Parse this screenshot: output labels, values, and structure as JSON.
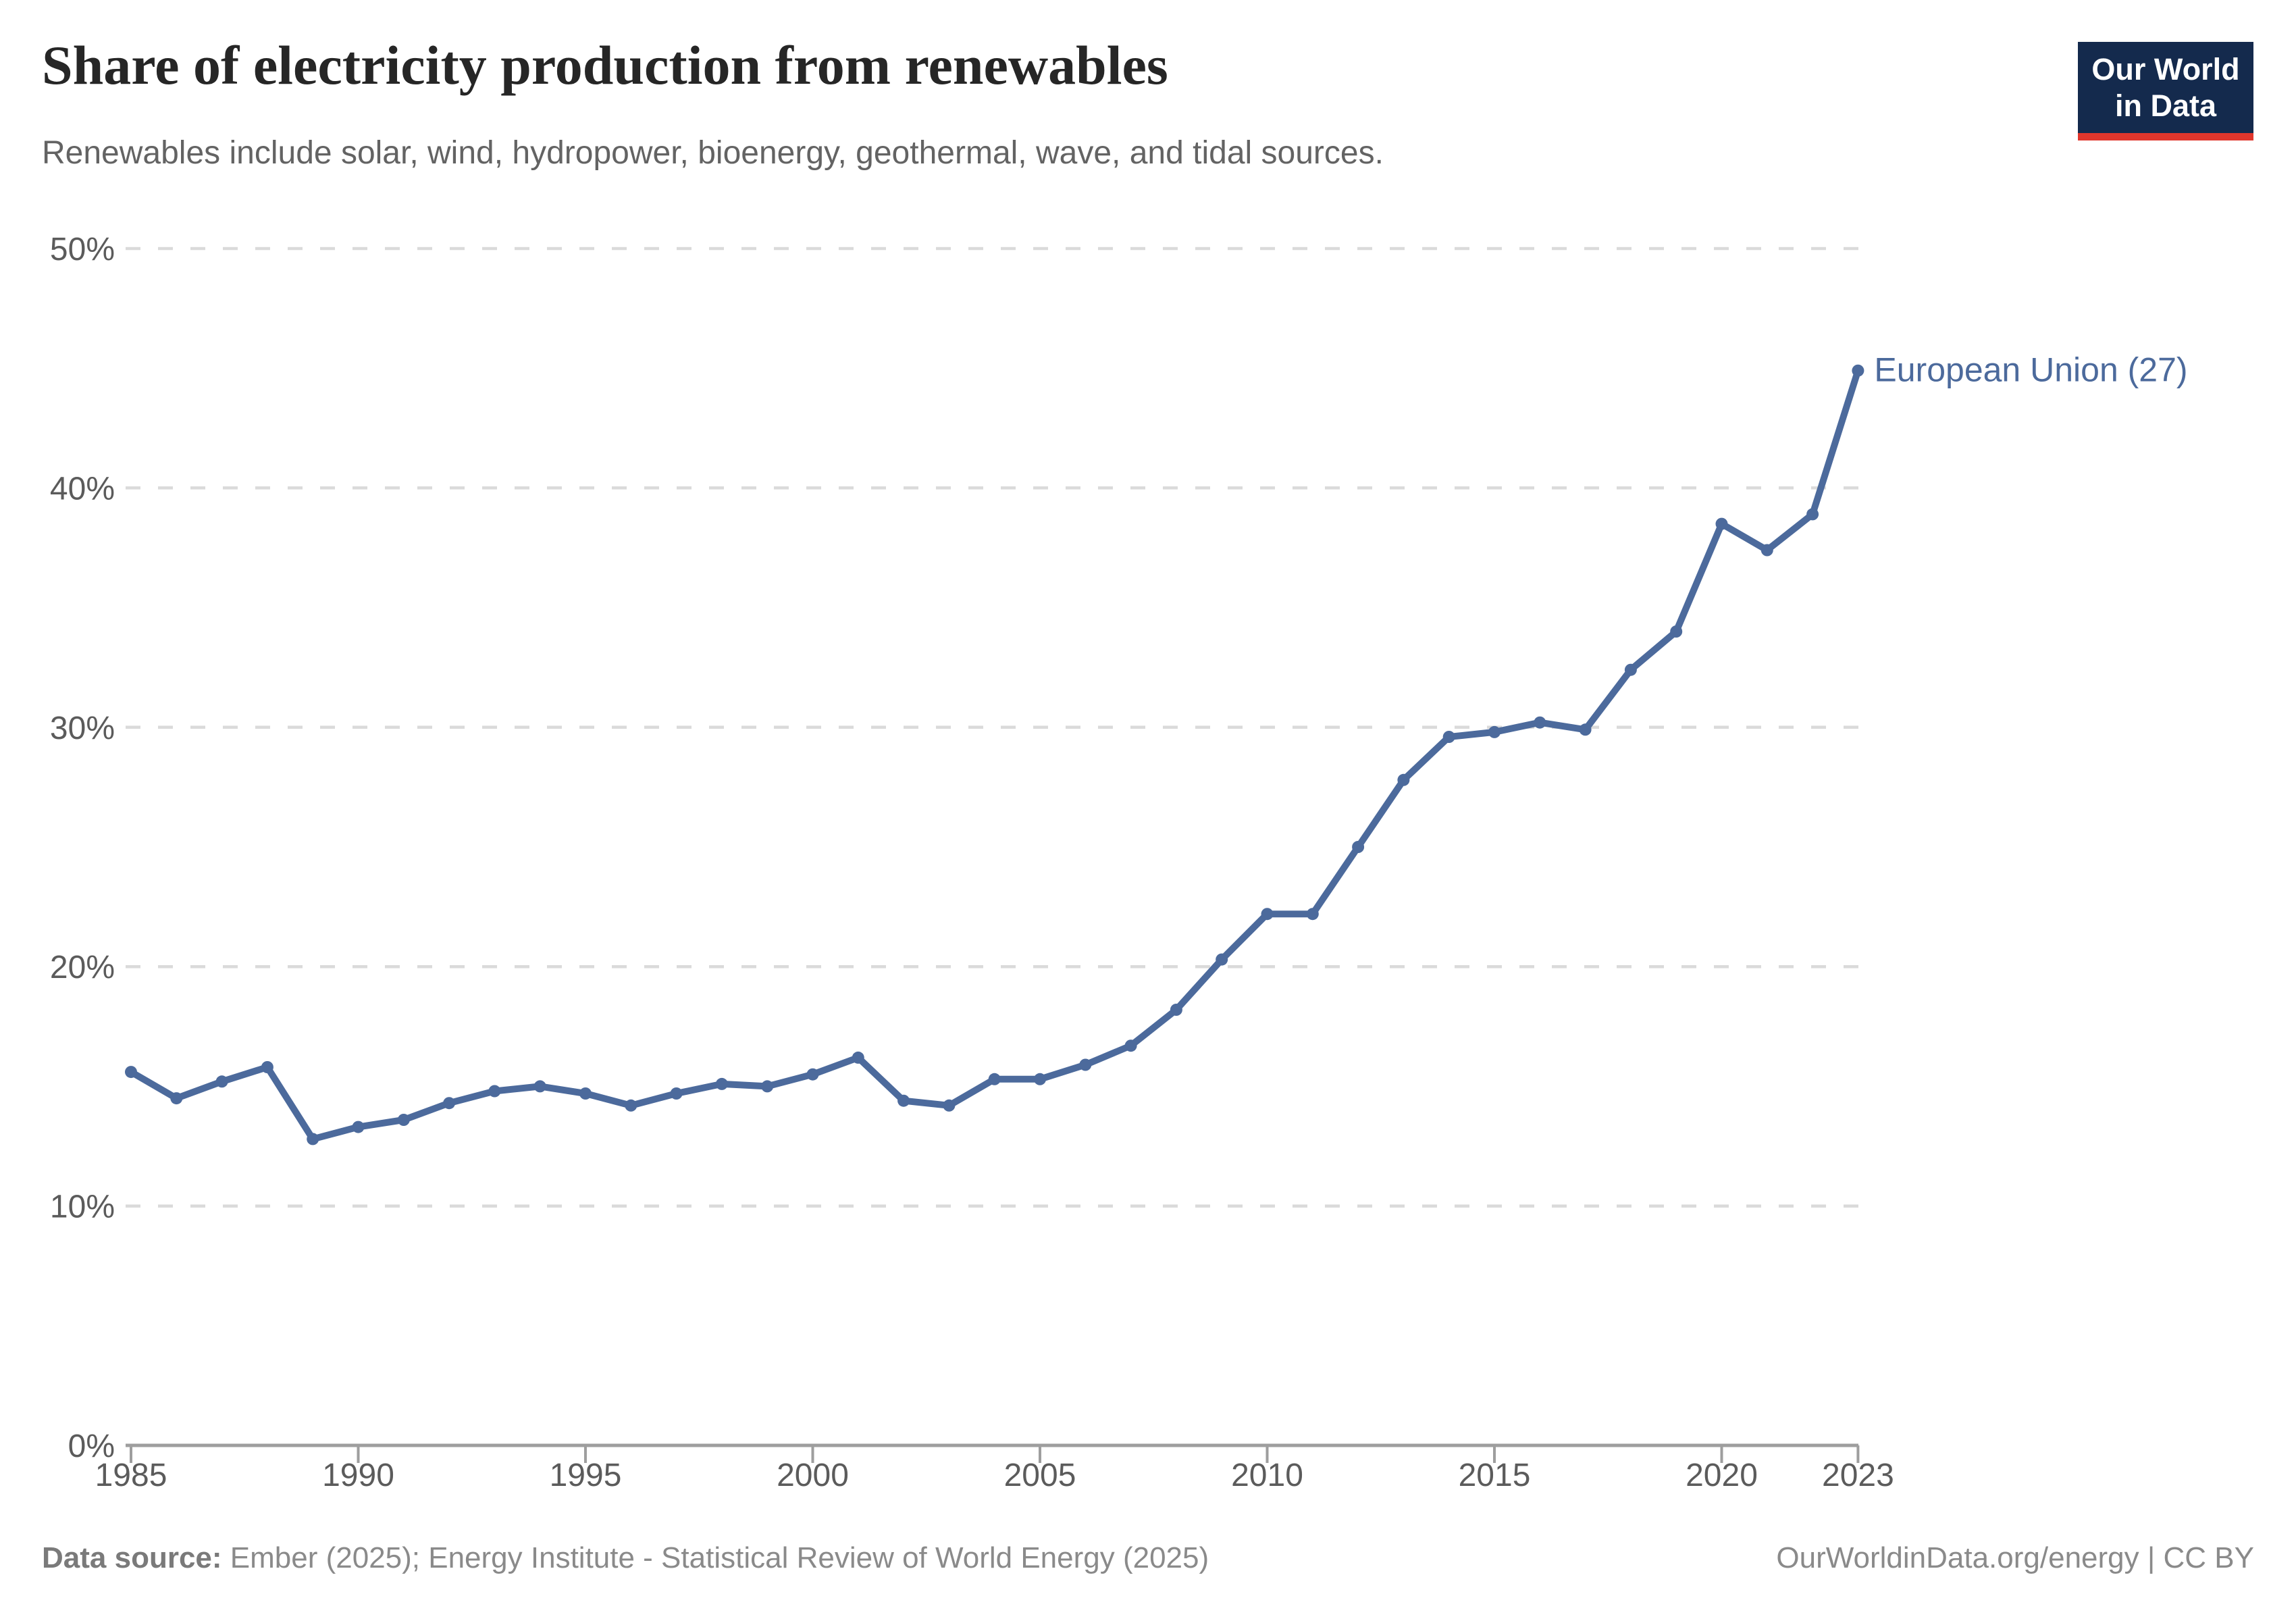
{
  "header": {
    "logo": {
      "line1": "Our World",
      "line2": "in Data"
    }
  },
  "chart_data": {
    "type": "line",
    "title": "Share of electricity production from renewables",
    "subtitle": "Renewables include solar, wind, hydropower, bioenergy, geothermal, wave, and tidal sources.",
    "xlabel": "",
    "ylabel": "",
    "xlim": [
      1985,
      2023
    ],
    "ylim": [
      0,
      50
    ],
    "grid": "horizontal-dashed",
    "legend_position": "end-of-line-label",
    "x": [
      1985,
      1986,
      1987,
      1988,
      1989,
      1990,
      1991,
      1992,
      1993,
      1994,
      1995,
      1996,
      1997,
      1998,
      1999,
      2000,
      2001,
      2002,
      2003,
      2004,
      2005,
      2006,
      2007,
      2008,
      2009,
      2010,
      2011,
      2012,
      2013,
      2014,
      2015,
      2016,
      2017,
      2018,
      2019,
      2020,
      2021,
      2022,
      2023
    ],
    "series": [
      {
        "name": "European Union (27)",
        "color": "#4C6A9C",
        "values": [
          15.6,
          14.5,
          15.2,
          15.8,
          12.8,
          13.3,
          13.6,
          14.3,
          14.8,
          15.0,
          14.7,
          14.2,
          14.7,
          15.1,
          15.0,
          15.5,
          16.2,
          14.4,
          14.2,
          15.3,
          15.3,
          15.9,
          16.7,
          18.2,
          20.3,
          22.2,
          22.2,
          25.0,
          27.8,
          29.6,
          29.8,
          30.2,
          29.9,
          32.4,
          34.0,
          38.5,
          37.4,
          38.9,
          44.9
        ]
      }
    ],
    "y_ticks": [
      {
        "value": 0,
        "label": "0%"
      },
      {
        "value": 10,
        "label": "10%"
      },
      {
        "value": 20,
        "label": "20%"
      },
      {
        "value": 30,
        "label": "30%"
      },
      {
        "value": 40,
        "label": "40%"
      },
      {
        "value": 50,
        "label": "50%"
      }
    ],
    "x_ticks": [
      1985,
      1990,
      1995,
      2000,
      2005,
      2010,
      2015,
      2020,
      2023
    ]
  },
  "footer": {
    "source_label": "Data source:",
    "source_text": "Ember (2025); Energy Institute - Statistical Review of World Energy (2025)",
    "attribution": "OurWorldinData.org/energy | CC BY"
  },
  "colors": {
    "line": "#4C6A9C",
    "grid": "#dadada",
    "axis": "#9e9e9e",
    "tick_text": "#5b5b5b",
    "logo_navy": "#142A4D",
    "logo_red": "#E0362C"
  }
}
